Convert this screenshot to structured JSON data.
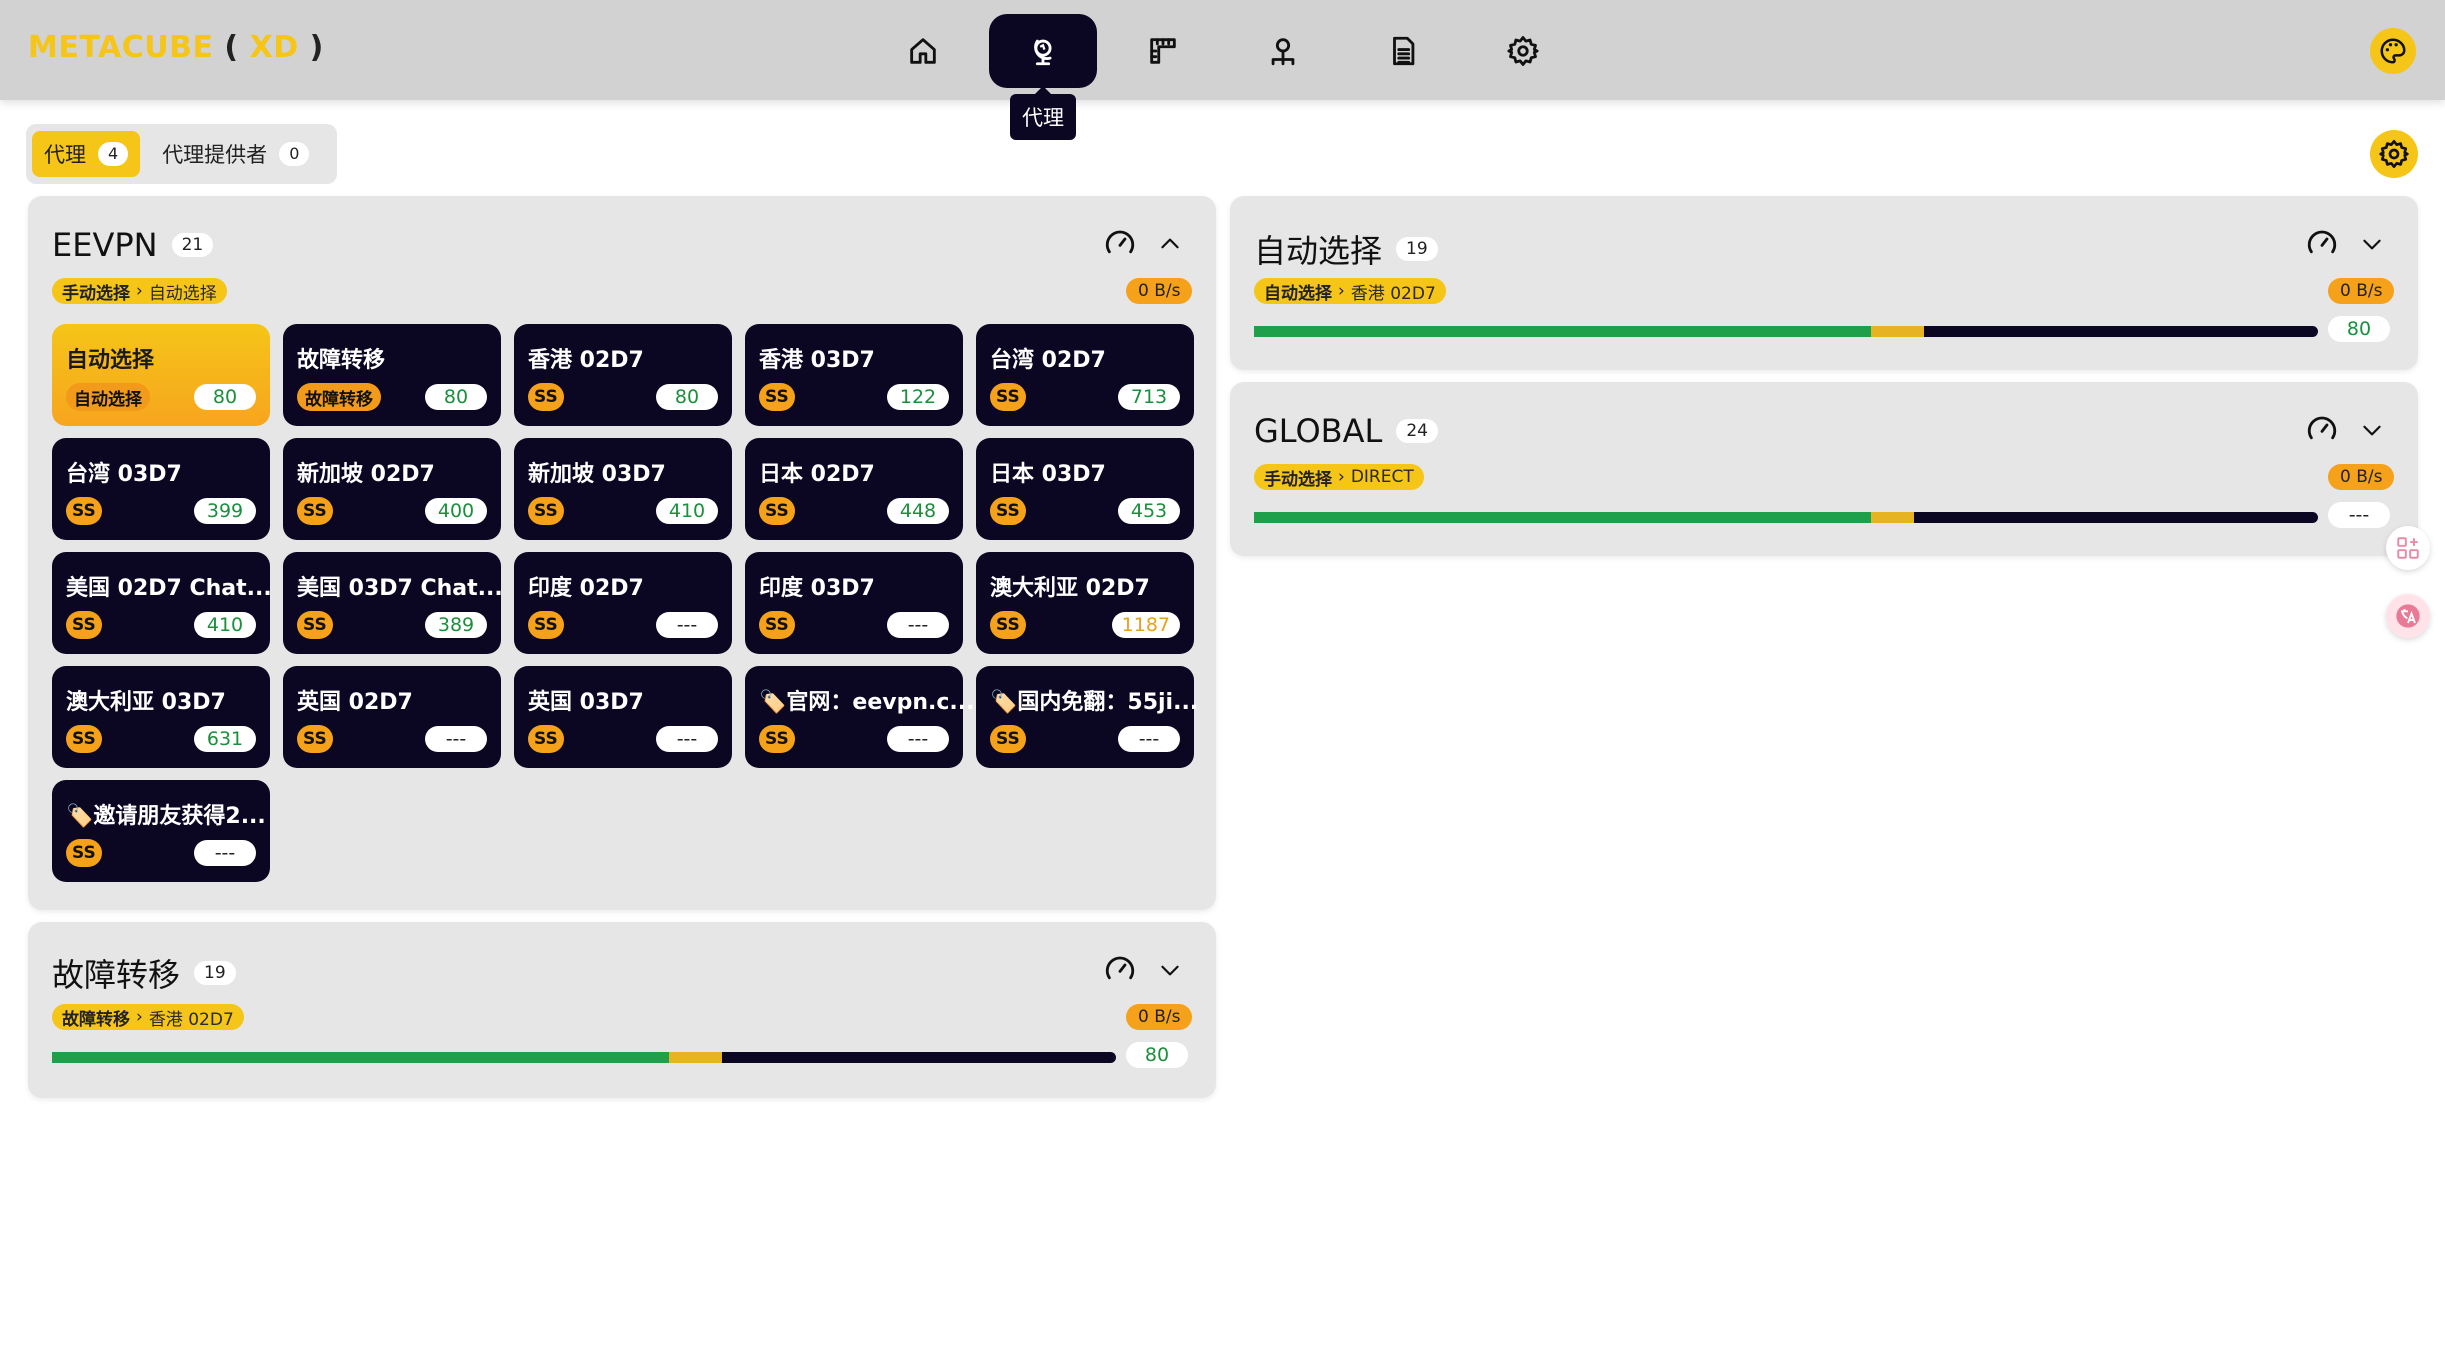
{
  "app": {
    "logo_main": "METACUBE",
    "logo_open": "(",
    "logo_xd": "XD",
    "logo_close": ")"
  },
  "nav": {
    "items": [
      {
        "icon": "home-icon",
        "active": false
      },
      {
        "icon": "globe-icon",
        "active": true
      },
      {
        "icon": "ruler-icon",
        "active": false
      },
      {
        "icon": "network-icon",
        "active": false
      },
      {
        "icon": "document-icon",
        "active": false
      },
      {
        "icon": "gear-icon",
        "active": false
      }
    ],
    "tooltip": "代理"
  },
  "tabs": [
    {
      "label": "代理",
      "count": "4",
      "active": true
    },
    {
      "label": "代理提供者",
      "count": "0",
      "active": false
    }
  ],
  "groups": {
    "eevpn": {
      "name": "EEVPN",
      "count": "21",
      "crumb_from": "手动选择",
      "crumb_to": "自动选择",
      "rate": "0 B/s",
      "proxies": [
        {
          "name": "自动选择",
          "type": "自动选择",
          "delay": "80",
          "selected": true,
          "state": "ok"
        },
        {
          "name": "故障转移",
          "type": "故障转移",
          "delay": "80",
          "selected": false,
          "state": "ok"
        },
        {
          "name": "香港 02D7",
          "type": "SS",
          "delay": "80",
          "selected": false,
          "state": "ok"
        },
        {
          "name": "香港 03D7",
          "type": "SS",
          "delay": "122",
          "selected": false,
          "state": "ok"
        },
        {
          "name": "台湾 02D7",
          "type": "SS",
          "delay": "713",
          "selected": false,
          "state": "ok"
        },
        {
          "name": "台湾 03D7",
          "type": "SS",
          "delay": "399",
          "selected": false,
          "state": "ok"
        },
        {
          "name": "新加坡 02D7",
          "type": "SS",
          "delay": "400",
          "selected": false,
          "state": "ok"
        },
        {
          "name": "新加坡 03D7",
          "type": "SS",
          "delay": "410",
          "selected": false,
          "state": "ok"
        },
        {
          "name": "日本 02D7",
          "type": "SS",
          "delay": "448",
          "selected": false,
          "state": "ok"
        },
        {
          "name": "日本 03D7",
          "type": "SS",
          "delay": "453",
          "selected": false,
          "state": "ok"
        },
        {
          "name": "美国 02D7 Chat...",
          "type": "SS",
          "delay": "410",
          "selected": false,
          "state": "ok"
        },
        {
          "name": "美国 03D7 Chat...",
          "type": "SS",
          "delay": "389",
          "selected": false,
          "state": "ok"
        },
        {
          "name": "印度 02D7",
          "type": "SS",
          "delay": "---",
          "selected": false,
          "state": "none"
        },
        {
          "name": "印度 03D7",
          "type": "SS",
          "delay": "---",
          "selected": false,
          "state": "none"
        },
        {
          "name": "澳大利亚 02D7",
          "type": "SS",
          "delay": "1187",
          "selected": false,
          "state": "warn"
        },
        {
          "name": "澳大利亚 03D7",
          "type": "SS",
          "delay": "631",
          "selected": false,
          "state": "ok"
        },
        {
          "name": "英国 02D7",
          "type": "SS",
          "delay": "---",
          "selected": false,
          "state": "none"
        },
        {
          "name": "英国 03D7",
          "type": "SS",
          "delay": "---",
          "selected": false,
          "state": "none"
        },
        {
          "name": "🏷️官网：eevpn.c...",
          "type": "SS",
          "delay": "---",
          "selected": false,
          "state": "none"
        },
        {
          "name": "🏷️国内免翻：55ji...",
          "type": "SS",
          "delay": "---",
          "selected": false,
          "state": "none"
        },
        {
          "name": "🏷️邀请朋友获得2...",
          "type": "SS",
          "delay": "---",
          "selected": false,
          "state": "none"
        }
      ]
    },
    "fallback": {
      "name": "故障转移",
      "count": "19",
      "crumb_from": "故障转移",
      "crumb_to": "香港 02D7",
      "rate": "0 B/s",
      "delay": "80",
      "bar": {
        "green": 0.58,
        "yellow": 0.05
      }
    },
    "auto": {
      "name": "自动选择",
      "count": "19",
      "crumb_from": "自动选择",
      "crumb_to": "香港 02D7",
      "rate": "0 B/s",
      "delay": "80",
      "bar": {
        "green": 0.58,
        "yellow": 0.05
      }
    },
    "global": {
      "name": "GLOBAL",
      "count": "24",
      "crumb_from": "手动选择",
      "crumb_to": "DIRECT",
      "rate": "0 B/s",
      "delay": "---",
      "bar": {
        "green": 0.58,
        "yellow": 0.04
      }
    }
  },
  "colors": {
    "accent": "#f5c518",
    "dark": "#0b0723",
    "green": "#1ea04a",
    "orange": "#f5a11a"
  }
}
